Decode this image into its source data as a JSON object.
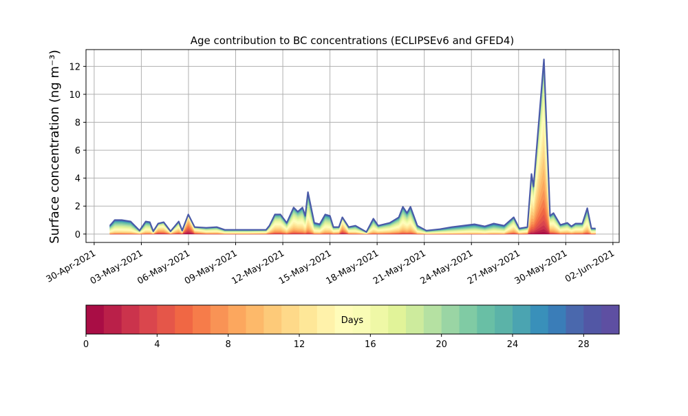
{
  "chart_data": {
    "type": "area",
    "stacked": true,
    "title": "Age contribution to BC concentrations (ECLIPSEv6 and GFED4)",
    "xlabel": "",
    "ylabel": "Surface concentration (ng m⁻³)",
    "ylim": [
      -0.6,
      13.2
    ],
    "xlim_days_since_30_Apr_2021": [
      -0.52,
      33.4
    ],
    "grid": true,
    "yticks": [
      0,
      2,
      4,
      6,
      8,
      10,
      12
    ],
    "ytick_labels": [
      "0",
      "2",
      "4",
      "6",
      "8",
      "10",
      "12"
    ],
    "xticks_days_since_30_Apr_2021": [
      0,
      3,
      6,
      9,
      12,
      15,
      18,
      21,
      24,
      27,
      30,
      33
    ],
    "xtick_labels": [
      "30-Apr-2021",
      "03-May-2021",
      "06-May-2021",
      "09-May-2021",
      "12-May-2021",
      "15-May-2021",
      "18-May-2021",
      "21-May-2021",
      "24-May-2021",
      "27-May-2021",
      "30-May-2021",
      "02-Jun-2021"
    ],
    "series_note": "points are [days since 30-Apr-2021, total concentration, mean age bin (days)]",
    "total_series": [
      [
        1.0,
        0.6,
        17
      ],
      [
        1.31,
        1.0,
        17
      ],
      [
        1.75,
        1.0,
        17
      ],
      [
        2.32,
        0.9,
        17
      ],
      [
        2.89,
        0.25,
        16
      ],
      [
        3.28,
        0.9,
        16
      ],
      [
        3.54,
        0.85,
        16
      ],
      [
        3.76,
        0.2,
        15
      ],
      [
        4.07,
        0.75,
        11
      ],
      [
        4.42,
        0.85,
        12
      ],
      [
        4.86,
        0.2,
        14
      ],
      [
        5.38,
        0.9,
        13
      ],
      [
        5.6,
        0.25,
        12
      ],
      [
        5.99,
        1.4,
        6
      ],
      [
        6.39,
        0.5,
        12
      ],
      [
        7.13,
        0.45,
        15
      ],
      [
        7.79,
        0.5,
        15
      ],
      [
        8.31,
        0.3,
        16
      ],
      [
        9.76,
        0.3,
        16
      ],
      [
        10.94,
        0.3,
        15
      ],
      [
        11.15,
        0.6,
        14
      ],
      [
        11.5,
        1.4,
        14
      ],
      [
        11.85,
        1.4,
        14
      ],
      [
        12.25,
        0.8,
        15
      ],
      [
        12.69,
        1.9,
        14
      ],
      [
        12.95,
        1.6,
        14
      ],
      [
        13.25,
        1.9,
        15
      ],
      [
        13.43,
        1.3,
        15
      ],
      [
        13.6,
        3.0,
        15
      ],
      [
        14.0,
        0.8,
        17
      ],
      [
        14.35,
        0.7,
        17
      ],
      [
        14.7,
        1.4,
        16
      ],
      [
        15.0,
        1.3,
        16
      ],
      [
        15.22,
        0.5,
        15
      ],
      [
        15.57,
        0.5,
        14
      ],
      [
        15.79,
        1.2,
        10
      ],
      [
        16.19,
        0.5,
        15
      ],
      [
        16.62,
        0.6,
        16
      ],
      [
        17.32,
        0.15,
        16
      ],
      [
        17.76,
        1.1,
        16
      ],
      [
        18.07,
        0.6,
        15
      ],
      [
        18.81,
        0.8,
        15
      ],
      [
        19.38,
        1.2,
        15
      ],
      [
        19.64,
        1.95,
        15
      ],
      [
        19.9,
        1.5,
        15
      ],
      [
        20.12,
        1.95,
        15
      ],
      [
        20.56,
        0.6,
        17
      ],
      [
        21.13,
        0.25,
        17
      ],
      [
        22.0,
        0.35,
        17
      ],
      [
        22.75,
        0.5,
        18
      ],
      [
        24.19,
        0.7,
        18
      ],
      [
        24.85,
        0.55,
        18
      ],
      [
        25.42,
        0.75,
        18
      ],
      [
        26.08,
        0.6,
        18
      ],
      [
        26.69,
        1.2,
        14
      ],
      [
        27.04,
        0.4,
        16
      ],
      [
        27.56,
        0.5,
        15
      ],
      [
        27.82,
        4.3,
        12
      ],
      [
        27.95,
        3.4,
        11
      ],
      [
        28.61,
        12.5,
        11
      ],
      [
        29.0,
        1.3,
        13
      ],
      [
        29.22,
        1.5,
        14
      ],
      [
        29.66,
        0.65,
        15
      ],
      [
        30.1,
        0.8,
        15
      ],
      [
        30.36,
        0.55,
        15
      ],
      [
        30.62,
        0.75,
        15
      ],
      [
        31.06,
        0.75,
        15
      ],
      [
        31.37,
        1.85,
        15
      ],
      [
        31.63,
        0.4,
        16
      ],
      [
        31.89,
        0.4,
        16
      ]
    ],
    "colorbar": {
      "label": "Days",
      "range": [
        0,
        30
      ],
      "ticks": [
        0,
        4,
        8,
        12,
        16,
        20,
        24,
        28
      ],
      "tick_labels": [
        "0",
        "4",
        "8",
        "12",
        "16",
        "20",
        "24",
        "28"
      ],
      "colors": [
        "#a90d45",
        "#ba2049",
        "#cb334c",
        "#da464d",
        "#e55649",
        "#f06744",
        "#f67c4a",
        "#f99355",
        "#fca75e",
        "#fdb96a",
        "#fdca79",
        "#fed989",
        "#fee798",
        "#fff2aa",
        "#fffcba",
        "#f9fcb5",
        "#eff8a6",
        "#e1f399",
        "#cdeb9d",
        "#b5e1a2",
        "#9ad5a4",
        "#80cba4",
        "#69bfa5",
        "#5bb3a8",
        "#4ba4b1",
        "#3990ba",
        "#3a7db8",
        "#4a68ad",
        "#5257a5",
        "#5e4fa2"
      ]
    },
    "top_line_color": "#4a5aa8",
    "grid_color": "#b0b0b0"
  }
}
